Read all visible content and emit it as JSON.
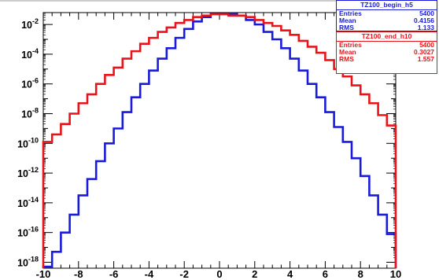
{
  "chart_data": {
    "type": "histogram-step",
    "xlim": [
      -10,
      10
    ],
    "ylim_log10": [
      -18.4,
      -1.2
    ],
    "log_y": true,
    "grid": false,
    "x_ticks": [
      "-10",
      "-8",
      "-6",
      "-4",
      "-2",
      "0",
      "2",
      "4",
      "6",
      "8",
      "10"
    ],
    "y_ticks": [
      {
        "base": "10",
        "exp": "-2"
      },
      {
        "base": "10",
        "exp": "-4"
      },
      {
        "base": "10",
        "exp": "-6"
      },
      {
        "base": "10",
        "exp": "-8"
      },
      {
        "base": "10",
        "exp": "-10"
      },
      {
        "base": "10",
        "exp": "-12"
      },
      {
        "base": "10",
        "exp": "-14"
      },
      {
        "base": "10",
        "exp": "-16"
      },
      {
        "base": "10",
        "exp": "-18"
      }
    ],
    "bin_edges": [
      -10,
      -9.5,
      -9,
      -8.5,
      -8,
      -7.5,
      -7,
      -6.5,
      -6,
      -5.5,
      -5,
      -4.5,
      -4,
      -3.5,
      -3,
      -2.5,
      -2,
      -1.5,
      -1,
      -0.5,
      0,
      0.5,
      1,
      1.5,
      2,
      2.5,
      3,
      3.5,
      4,
      4.5,
      5,
      5.5,
      6,
      6.5,
      7,
      7.5,
      8,
      8.5,
      9,
      9.5,
      10
    ],
    "series": [
      {
        "name": "TZ100_begin_h5",
        "color": "#1a1adb",
        "log10_values": [
          -18.3,
          -17.3,
          -16.0,
          -14.8,
          -13.5,
          -12.4,
          -11.2,
          -10.0,
          -9.0,
          -7.9,
          -6.9,
          -6.0,
          -5.1,
          -4.3,
          -3.6,
          -2.9,
          -2.3,
          -1.8,
          -1.5,
          -1.3,
          -1.3,
          -1.3,
          -1.4,
          -1.7,
          -2.0,
          -2.5,
          -3.0,
          -3.6,
          -4.3,
          -5.1,
          -6.0,
          -6.9,
          -7.9,
          -8.9,
          -9.9,
          -11.0,
          -12.2,
          -13.5,
          -14.8,
          -16.1
        ]
      },
      {
        "name": "TZ100_end_h10",
        "color": "#e8141a",
        "log10_values": [
          -9.9,
          -9.4,
          -8.7,
          -8.0,
          -7.3,
          -6.7,
          -6.0,
          -5.4,
          -4.9,
          -4.3,
          -3.8,
          -3.3,
          -2.9,
          -2.5,
          -2.2,
          -1.9,
          -1.7,
          -1.5,
          -1.4,
          -1.3,
          -1.3,
          -1.4,
          -1.4,
          -1.5,
          -1.7,
          -1.9,
          -2.1,
          -2.4,
          -2.7,
          -3.1,
          -3.5,
          -3.9,
          -4.4,
          -5.0,
          -5.5,
          -6.1,
          -6.7,
          -7.3,
          -8.1,
          -8.8
        ]
      }
    ]
  },
  "stats_boxes": [
    {
      "title": "TZ100_begin_h5",
      "rows": [
        [
          "Entries",
          "5400"
        ],
        [
          "Mean",
          "0.4156"
        ],
        [
          "RMS",
          "1.133"
        ]
      ]
    },
    {
      "title": "TZ100_end_h10",
      "rows": [
        [
          "Entries",
          "5400"
        ],
        [
          "Mean",
          "0.3027"
        ],
        [
          "RMS",
          "1.557"
        ]
      ]
    }
  ]
}
